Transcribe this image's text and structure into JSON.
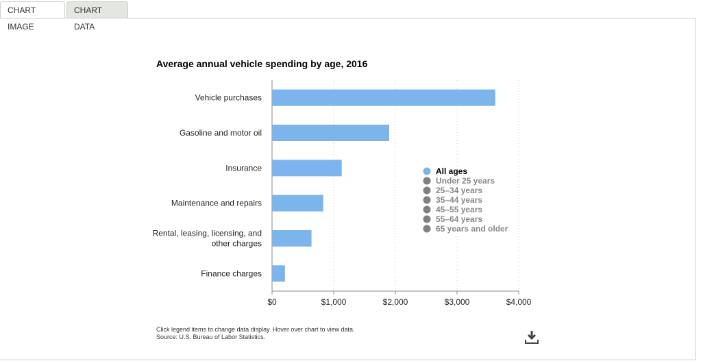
{
  "tabs": [
    {
      "label": "CHART IMAGE",
      "active": true
    },
    {
      "label": "CHART DATA",
      "active": false
    }
  ],
  "notes": {
    "line1": "Click legend items to change data display. Hover over chart to view data.",
    "line2": "Source: U.S. Bureau of Labor Statistics."
  },
  "download_icon": "download-icon",
  "chart_data": {
    "type": "bar",
    "orientation": "horizontal",
    "title": "Average annual vehicle spending by age, 2016",
    "categories": [
      "Vehicle purchases",
      "Gasoline and motor oil",
      "Insurance",
      "Maintenance and repairs",
      "Rental, leasing, licensing, and other charges",
      "Finance charges"
    ],
    "category_lines": [
      [
        "Vehicle purchases"
      ],
      [
        "Gasoline and motor oil"
      ],
      [
        "Insurance"
      ],
      [
        "Maintenance and repairs"
      ],
      [
        "Rental, leasing, licensing, and",
        "other charges"
      ],
      [
        "Finance charges"
      ]
    ],
    "series": [
      {
        "name": "All ages",
        "values": [
          3620,
          1900,
          1130,
          830,
          640,
          210
        ],
        "color": "#7cb5ec"
      }
    ],
    "legend": [
      {
        "label": "All ages",
        "active": true,
        "color": "#7cb5ec"
      },
      {
        "label": "Under 25 years",
        "active": false,
        "color": "#808080"
      },
      {
        "label": "25–34 years",
        "active": false,
        "color": "#808080"
      },
      {
        "label": "35–44 years",
        "active": false,
        "color": "#808080"
      },
      {
        "label": "45–55 years",
        "active": false,
        "color": "#808080"
      },
      {
        "label": "55–64 years",
        "active": false,
        "color": "#808080"
      },
      {
        "label": "65 years and older",
        "active": false,
        "color": "#808080"
      }
    ],
    "legend_position": "right",
    "xlim": [
      0,
      4000
    ],
    "ticks": [
      0,
      1000,
      2000,
      3000,
      4000
    ],
    "tick_labels": [
      "$0",
      "$1,000",
      "$2,000",
      "$3,000",
      "$4,000"
    ],
    "grid": true
  }
}
